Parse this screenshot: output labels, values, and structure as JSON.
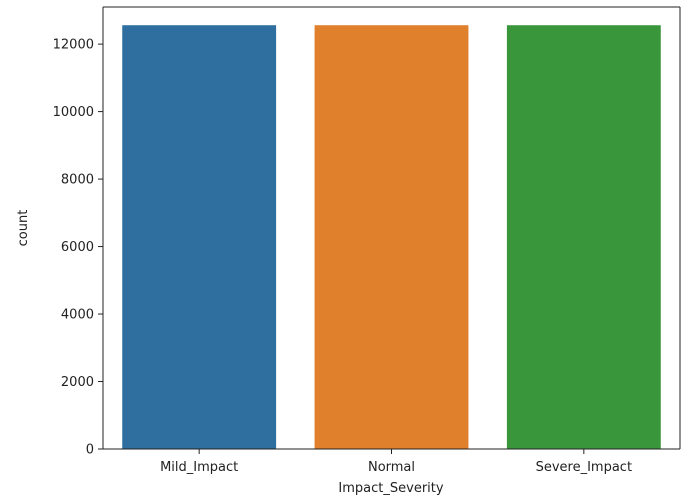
{
  "chart_data": {
    "type": "bar",
    "categories": [
      "Mild_Impact",
      "Normal",
      "Severe_Impact"
    ],
    "values": [
      12560,
      12560,
      12560
    ],
    "colors": [
      "#2f6f9f",
      "#e07f2c",
      "#3a963a"
    ],
    "title": "",
    "xlabel": "Impact_Severity",
    "ylabel": "count",
    "ylim": [
      0,
      13100
    ],
    "yticks": [
      0,
      2000,
      4000,
      6000,
      8000,
      10000,
      12000
    ],
    "grid": false,
    "legend": "none"
  }
}
